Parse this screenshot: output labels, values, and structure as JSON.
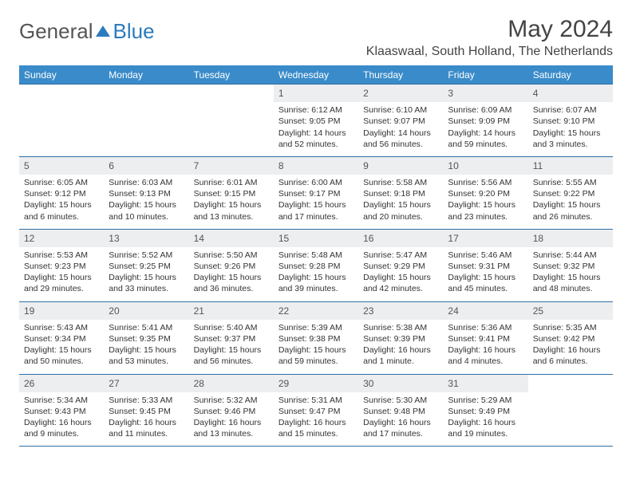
{
  "brand": {
    "part1": "General",
    "part2": "Blue"
  },
  "title": "May 2024",
  "location": "Klaaswaal, South Holland, The Netherlands",
  "colors": {
    "header_bg": "#3a8bc9",
    "daynum_bg": "#eceeef",
    "rule": "#2f6fa6"
  },
  "day_headers": [
    "Sunday",
    "Monday",
    "Tuesday",
    "Wednesday",
    "Thursday",
    "Friday",
    "Saturday"
  ],
  "weeks": [
    [
      {
        "n": "",
        "sr": "",
        "ss": "",
        "dl": ""
      },
      {
        "n": "",
        "sr": "",
        "ss": "",
        "dl": ""
      },
      {
        "n": "",
        "sr": "",
        "ss": "",
        "dl": ""
      },
      {
        "n": "1",
        "sr": "Sunrise: 6:12 AM",
        "ss": "Sunset: 9:05 PM",
        "dl": "Daylight: 14 hours and 52 minutes."
      },
      {
        "n": "2",
        "sr": "Sunrise: 6:10 AM",
        "ss": "Sunset: 9:07 PM",
        "dl": "Daylight: 14 hours and 56 minutes."
      },
      {
        "n": "3",
        "sr": "Sunrise: 6:09 AM",
        "ss": "Sunset: 9:09 PM",
        "dl": "Daylight: 14 hours and 59 minutes."
      },
      {
        "n": "4",
        "sr": "Sunrise: 6:07 AM",
        "ss": "Sunset: 9:10 PM",
        "dl": "Daylight: 15 hours and 3 minutes."
      }
    ],
    [
      {
        "n": "5",
        "sr": "Sunrise: 6:05 AM",
        "ss": "Sunset: 9:12 PM",
        "dl": "Daylight: 15 hours and 6 minutes."
      },
      {
        "n": "6",
        "sr": "Sunrise: 6:03 AM",
        "ss": "Sunset: 9:13 PM",
        "dl": "Daylight: 15 hours and 10 minutes."
      },
      {
        "n": "7",
        "sr": "Sunrise: 6:01 AM",
        "ss": "Sunset: 9:15 PM",
        "dl": "Daylight: 15 hours and 13 minutes."
      },
      {
        "n": "8",
        "sr": "Sunrise: 6:00 AM",
        "ss": "Sunset: 9:17 PM",
        "dl": "Daylight: 15 hours and 17 minutes."
      },
      {
        "n": "9",
        "sr": "Sunrise: 5:58 AM",
        "ss": "Sunset: 9:18 PM",
        "dl": "Daylight: 15 hours and 20 minutes."
      },
      {
        "n": "10",
        "sr": "Sunrise: 5:56 AM",
        "ss": "Sunset: 9:20 PM",
        "dl": "Daylight: 15 hours and 23 minutes."
      },
      {
        "n": "11",
        "sr": "Sunrise: 5:55 AM",
        "ss": "Sunset: 9:22 PM",
        "dl": "Daylight: 15 hours and 26 minutes."
      }
    ],
    [
      {
        "n": "12",
        "sr": "Sunrise: 5:53 AM",
        "ss": "Sunset: 9:23 PM",
        "dl": "Daylight: 15 hours and 29 minutes."
      },
      {
        "n": "13",
        "sr": "Sunrise: 5:52 AM",
        "ss": "Sunset: 9:25 PM",
        "dl": "Daylight: 15 hours and 33 minutes."
      },
      {
        "n": "14",
        "sr": "Sunrise: 5:50 AM",
        "ss": "Sunset: 9:26 PM",
        "dl": "Daylight: 15 hours and 36 minutes."
      },
      {
        "n": "15",
        "sr": "Sunrise: 5:48 AM",
        "ss": "Sunset: 9:28 PM",
        "dl": "Daylight: 15 hours and 39 minutes."
      },
      {
        "n": "16",
        "sr": "Sunrise: 5:47 AM",
        "ss": "Sunset: 9:29 PM",
        "dl": "Daylight: 15 hours and 42 minutes."
      },
      {
        "n": "17",
        "sr": "Sunrise: 5:46 AM",
        "ss": "Sunset: 9:31 PM",
        "dl": "Daylight: 15 hours and 45 minutes."
      },
      {
        "n": "18",
        "sr": "Sunrise: 5:44 AM",
        "ss": "Sunset: 9:32 PM",
        "dl": "Daylight: 15 hours and 48 minutes."
      }
    ],
    [
      {
        "n": "19",
        "sr": "Sunrise: 5:43 AM",
        "ss": "Sunset: 9:34 PM",
        "dl": "Daylight: 15 hours and 50 minutes."
      },
      {
        "n": "20",
        "sr": "Sunrise: 5:41 AM",
        "ss": "Sunset: 9:35 PM",
        "dl": "Daylight: 15 hours and 53 minutes."
      },
      {
        "n": "21",
        "sr": "Sunrise: 5:40 AM",
        "ss": "Sunset: 9:37 PM",
        "dl": "Daylight: 15 hours and 56 minutes."
      },
      {
        "n": "22",
        "sr": "Sunrise: 5:39 AM",
        "ss": "Sunset: 9:38 PM",
        "dl": "Daylight: 15 hours and 59 minutes."
      },
      {
        "n": "23",
        "sr": "Sunrise: 5:38 AM",
        "ss": "Sunset: 9:39 PM",
        "dl": "Daylight: 16 hours and 1 minute."
      },
      {
        "n": "24",
        "sr": "Sunrise: 5:36 AM",
        "ss": "Sunset: 9:41 PM",
        "dl": "Daylight: 16 hours and 4 minutes."
      },
      {
        "n": "25",
        "sr": "Sunrise: 5:35 AM",
        "ss": "Sunset: 9:42 PM",
        "dl": "Daylight: 16 hours and 6 minutes."
      }
    ],
    [
      {
        "n": "26",
        "sr": "Sunrise: 5:34 AM",
        "ss": "Sunset: 9:43 PM",
        "dl": "Daylight: 16 hours and 9 minutes."
      },
      {
        "n": "27",
        "sr": "Sunrise: 5:33 AM",
        "ss": "Sunset: 9:45 PM",
        "dl": "Daylight: 16 hours and 11 minutes."
      },
      {
        "n": "28",
        "sr": "Sunrise: 5:32 AM",
        "ss": "Sunset: 9:46 PM",
        "dl": "Daylight: 16 hours and 13 minutes."
      },
      {
        "n": "29",
        "sr": "Sunrise: 5:31 AM",
        "ss": "Sunset: 9:47 PM",
        "dl": "Daylight: 16 hours and 15 minutes."
      },
      {
        "n": "30",
        "sr": "Sunrise: 5:30 AM",
        "ss": "Sunset: 9:48 PM",
        "dl": "Daylight: 16 hours and 17 minutes."
      },
      {
        "n": "31",
        "sr": "Sunrise: 5:29 AM",
        "ss": "Sunset: 9:49 PM",
        "dl": "Daylight: 16 hours and 19 minutes."
      },
      {
        "n": "",
        "sr": "",
        "ss": "",
        "dl": ""
      }
    ]
  ]
}
